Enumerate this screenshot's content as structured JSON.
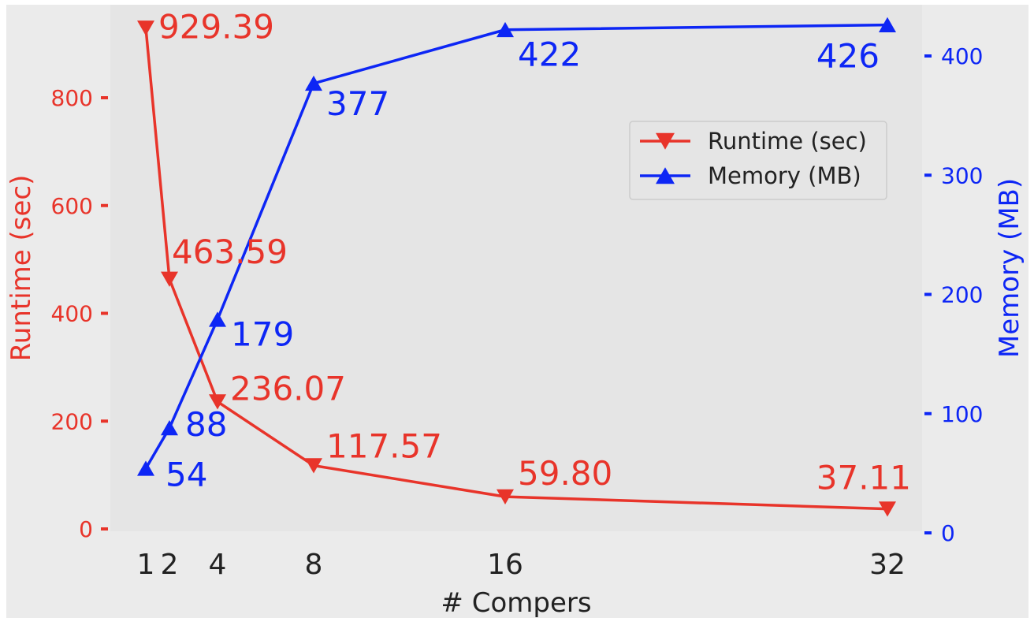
{
  "chart_data": {
    "type": "line",
    "xlabel": "# Compers",
    "x": [
      1,
      2,
      4,
      8,
      16,
      32
    ],
    "x_tick_labels": [
      "1",
      "2",
      "4",
      "8",
      "16",
      "32"
    ],
    "legend_position": "center-right",
    "series": [
      {
        "name": "Runtime (sec)",
        "axis": "left",
        "color": "#e8342a",
        "marker": "triangle-down",
        "values": [
          929.39,
          463.59,
          236.07,
          117.57,
          59.8,
          37.11
        ],
        "labels": [
          "929.39",
          "463.59",
          "236.07",
          "117.57",
          "59.80",
          "37.11"
        ]
      },
      {
        "name": "Memory (MB)",
        "axis": "right",
        "color": "#0d26f5",
        "marker": "triangle-up",
        "values": [
          54,
          88,
          179,
          377,
          422,
          426
        ],
        "labels": [
          "54",
          "88",
          "179",
          "377",
          "422",
          "426"
        ]
      }
    ],
    "left_axis": {
      "label": "Runtime (sec)",
      "ylim": [
        0,
        930
      ],
      "ticks": [
        0,
        200,
        400,
        600,
        800
      ],
      "tick_labels": [
        "0",
        "200",
        "400",
        "600",
        "800"
      ],
      "color": "#e8342a"
    },
    "right_axis": {
      "label": "Memory (MB)",
      "ylim": [
        0,
        430
      ],
      "ticks": [
        0,
        100,
        200,
        300,
        400
      ],
      "tick_labels": [
        "0",
        "100",
        "200",
        "300",
        "400"
      ],
      "color": "#0d26f5"
    },
    "grid": false
  }
}
